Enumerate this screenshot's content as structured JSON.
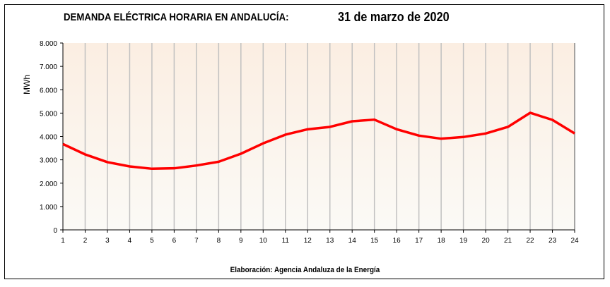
{
  "title": "DEMANDA ELÉCTRICA HORARIA EN ANDALUCÍA:",
  "date": "31 de marzo de 2020",
  "footer": "Elaboración: Agencia Andaluza de la Energía",
  "chart_data": {
    "type": "line",
    "title": "DEMANDA ELÉCTRICA HORARIA EN ANDALUCÍA: 31 de marzo de 2020",
    "xlabel": "",
    "ylabel": "MWh",
    "x": [
      1,
      2,
      3,
      4,
      5,
      6,
      7,
      8,
      9,
      10,
      11,
      12,
      13,
      14,
      15,
      16,
      17,
      18,
      19,
      20,
      21,
      22,
      23,
      24
    ],
    "xtick_labels": [
      "1",
      "2",
      "3",
      "4",
      "5",
      "6",
      "7",
      "8",
      "9",
      "10",
      "11",
      "12",
      "13",
      "14",
      "15",
      "16",
      "17",
      "18",
      "19",
      "20",
      "21",
      "22",
      "23",
      "24"
    ],
    "ylim": [
      0,
      8000
    ],
    "ytick_labels": [
      "0",
      "1.000",
      "2.000",
      "3.000",
      "4.000",
      "5.000",
      "6.000",
      "7.000",
      "8.000"
    ],
    "yticks": [
      0,
      1000,
      2000,
      3000,
      4000,
      5000,
      6000,
      7000,
      8000
    ],
    "grid": "vertical",
    "series": [
      {
        "name": "Demanda",
        "color": "#ff0000",
        "values": [
          3675,
          3230,
          2900,
          2717,
          2617,
          2636,
          2757,
          2918,
          3260,
          3704,
          4076,
          4307,
          4408,
          4649,
          4719,
          4307,
          4036,
          3904,
          3976,
          4127,
          4408,
          5012,
          4710,
          4127
        ]
      }
    ]
  }
}
